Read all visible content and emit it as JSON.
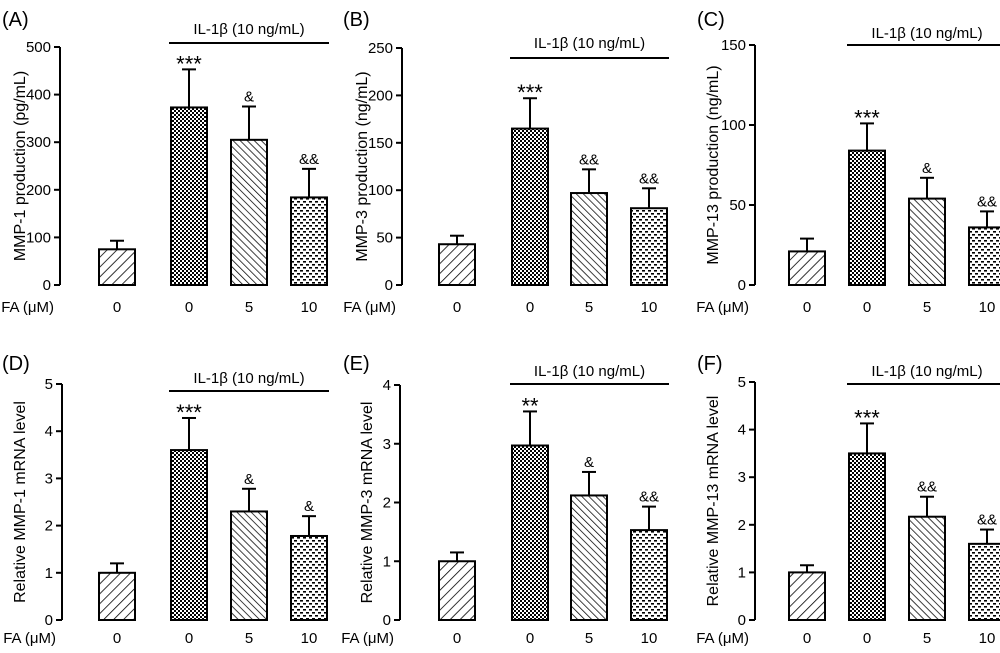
{
  "figure": {
    "treatment_label": "IL-1β (10 ng/mL)",
    "x_axis_prefix": "FA (μM)"
  },
  "chart_data": [
    {
      "type": "bar",
      "panel": "(A)",
      "ylabel": "MMP-1 production (pg/mL)",
      "categories": [
        "0",
        "0",
        "5",
        "10"
      ],
      "values": [
        75,
        373,
        305,
        184
      ],
      "errors": [
        18,
        80,
        70,
        60
      ],
      "significance": [
        "",
        "***",
        "&",
        "&&"
      ],
      "patterns": [
        "diag",
        "check",
        "diag-dense",
        "dots"
      ],
      "ylim": [
        0,
        500
      ],
      "yticks": [
        0,
        100,
        200,
        300,
        400,
        500
      ]
    },
    {
      "type": "bar",
      "panel": "(B)",
      "ylabel": "MMP-3 production (ng/mL)",
      "categories": [
        "0",
        "0",
        "5",
        "10"
      ],
      "values": [
        43,
        165,
        97,
        81
      ],
      "errors": [
        9,
        32,
        25,
        21
      ],
      "significance": [
        "",
        "***",
        "&&",
        "&&"
      ],
      "patterns": [
        "diag",
        "check",
        "diag-dense",
        "dots"
      ],
      "ylim": [
        0,
        250
      ],
      "yticks": [
        0,
        50,
        100,
        150,
        200,
        250
      ]
    },
    {
      "type": "bar",
      "panel": "(C)",
      "ylabel": "MMP-13 production (ng/mL)",
      "categories": [
        "0",
        "0",
        "5",
        "10"
      ],
      "values": [
        21,
        84,
        54,
        36
      ],
      "errors": [
        8,
        17,
        13,
        10
      ],
      "significance": [
        "",
        "***",
        "&",
        "&&"
      ],
      "patterns": [
        "diag",
        "check",
        "diag-dense",
        "dots"
      ],
      "ylim": [
        0,
        150
      ],
      "yticks": [
        0,
        50,
        100,
        150
      ]
    },
    {
      "type": "bar",
      "panel": "(D)",
      "ylabel": "Relative MMP-1 mRNA level",
      "categories": [
        "0",
        "0",
        "5",
        "10"
      ],
      "values": [
        1.0,
        3.6,
        2.3,
        1.78
      ],
      "errors": [
        0.2,
        0.68,
        0.48,
        0.42
      ],
      "significance": [
        "",
        "***",
        "&",
        "&"
      ],
      "patterns": [
        "diag",
        "check",
        "diag-dense",
        "dots"
      ],
      "ylim": [
        0,
        5
      ],
      "yticks": [
        0,
        1,
        2,
        3,
        4,
        5
      ]
    },
    {
      "type": "bar",
      "panel": "(E)",
      "ylabel": "Relative MMP-3 mRNA level",
      "categories": [
        "0",
        "0",
        "5",
        "10"
      ],
      "values": [
        1.0,
        2.97,
        2.12,
        1.53
      ],
      "errors": [
        0.15,
        0.58,
        0.4,
        0.4
      ],
      "significance": [
        "",
        "**",
        "&",
        "&&"
      ],
      "patterns": [
        "diag",
        "check",
        "diag-dense",
        "dots"
      ],
      "ylim": [
        0,
        4
      ],
      "yticks": [
        0,
        1,
        2,
        3,
        4
      ]
    },
    {
      "type": "bar",
      "panel": "(F)",
      "ylabel": "Relative MMP-13 mRNA level",
      "categories": [
        "0",
        "0",
        "5",
        "10"
      ],
      "values": [
        1.0,
        3.5,
        2.17,
        1.6
      ],
      "errors": [
        0.15,
        0.63,
        0.42,
        0.3
      ],
      "significance": [
        "",
        "***",
        "&&",
        "&&"
      ],
      "patterns": [
        "diag",
        "check",
        "diag-dense",
        "dots"
      ],
      "ylim": [
        0,
        5
      ],
      "yticks": [
        0,
        1,
        2,
        3,
        4,
        5
      ]
    }
  ]
}
